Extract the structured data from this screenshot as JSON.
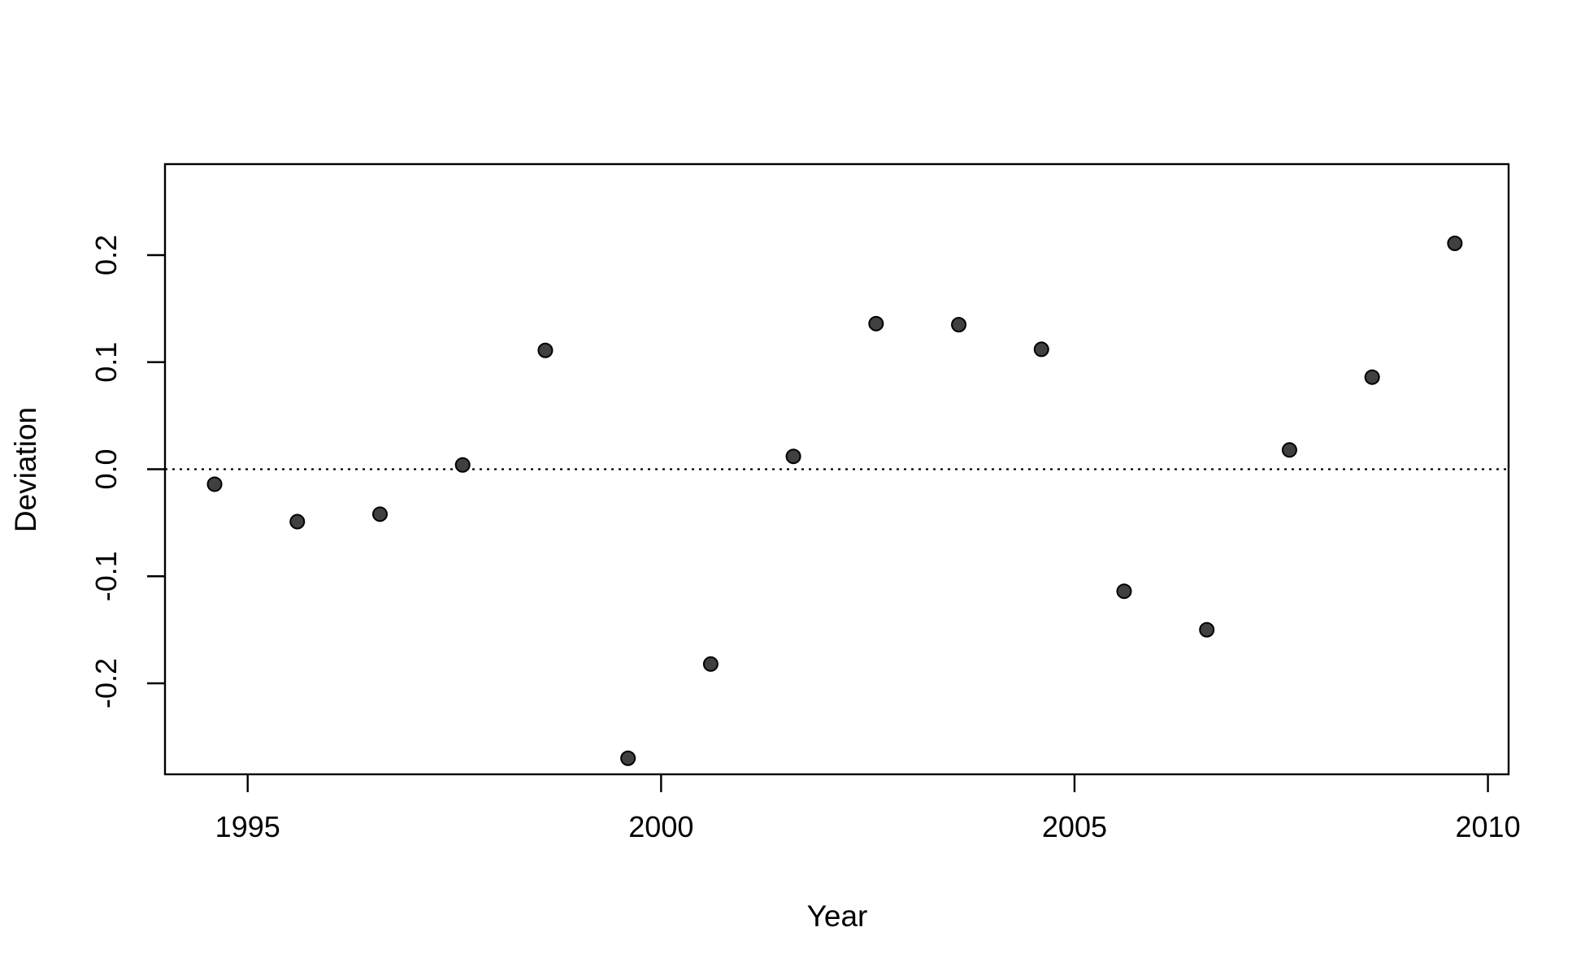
{
  "chart_data": {
    "type": "scatter",
    "title": "",
    "xlabel": "Year",
    "ylabel": "Deviation",
    "xlim": [
      1994,
      2010.25
    ],
    "ylim": [
      -0.285,
      0.285
    ],
    "x_ticks": [
      1995,
      2000,
      2005,
      2010
    ],
    "y_ticks": [
      -0.2,
      -0.1,
      0.0,
      0.1,
      0.2
    ],
    "x_tick_labels": [
      "1995",
      "2000",
      "2005",
      "2010"
    ],
    "y_tick_labels": [
      "-0.2",
      "-0.1",
      "0.0",
      "0.1",
      "0.2"
    ],
    "reference_line": {
      "y": 0,
      "style": "dotted"
    },
    "grid": false,
    "legend": "none",
    "point_color": "#404040",
    "points": [
      {
        "x": 1994.6,
        "y": -0.014
      },
      {
        "x": 1995.6,
        "y": -0.049
      },
      {
        "x": 1996.6,
        "y": -0.042
      },
      {
        "x": 1997.6,
        "y": 0.004
      },
      {
        "x": 1998.6,
        "y": 0.111
      },
      {
        "x": 1999.6,
        "y": -0.27
      },
      {
        "x": 2000.6,
        "y": -0.182
      },
      {
        "x": 2001.6,
        "y": 0.012
      },
      {
        "x": 2002.6,
        "y": 0.136
      },
      {
        "x": 2003.6,
        "y": 0.135
      },
      {
        "x": 2004.6,
        "y": 0.112
      },
      {
        "x": 2005.6,
        "y": -0.114
      },
      {
        "x": 2006.6,
        "y": -0.15
      },
      {
        "x": 2007.6,
        "y": 0.018
      },
      {
        "x": 2008.6,
        "y": 0.086
      },
      {
        "x": 2009.6,
        "y": 0.211
      }
    ]
  }
}
